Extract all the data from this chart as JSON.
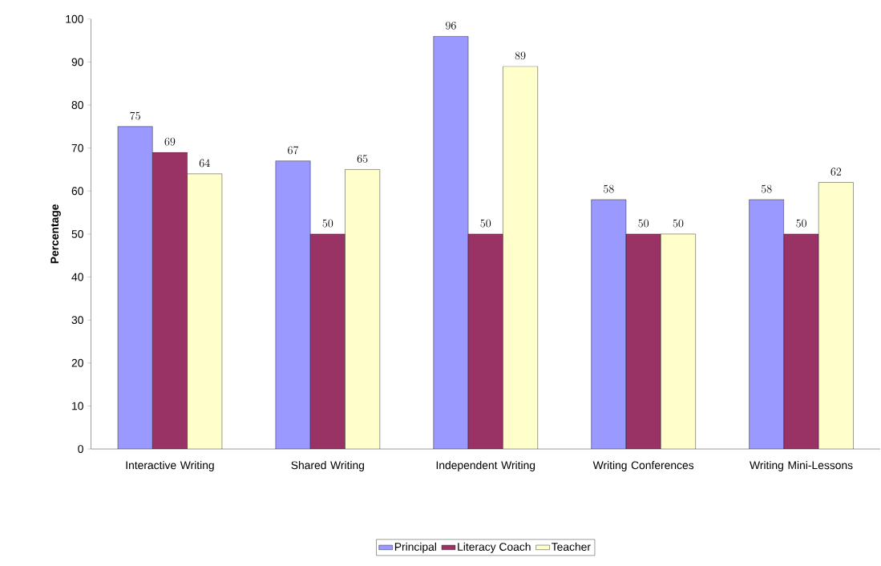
{
  "chart_data": {
    "type": "bar",
    "ylabel": "Percentage",
    "categories": [
      "Interactive Writing",
      "Shared Writing",
      "Independent Writing",
      "Writing Conferences",
      "Writing Mini-Lessons"
    ],
    "series": [
      {
        "name": "Principal",
        "color": "#9999ff",
        "values": [
          75,
          67,
          96,
          58,
          58
        ]
      },
      {
        "name": "Literacy Coach",
        "color": "#993366",
        "values": [
          69,
          50,
          50,
          50,
          50
        ]
      },
      {
        "name": "Teacher",
        "color": "#ffffcc",
        "values": [
          64,
          65,
          89,
          50,
          62
        ]
      }
    ],
    "ylim": [
      0,
      100
    ],
    "yticks": [
      0,
      10,
      20,
      30,
      40,
      50,
      60,
      70,
      80,
      90,
      100
    ],
    "data_labels": true,
    "legend": "bottom",
    "grid": false
  }
}
